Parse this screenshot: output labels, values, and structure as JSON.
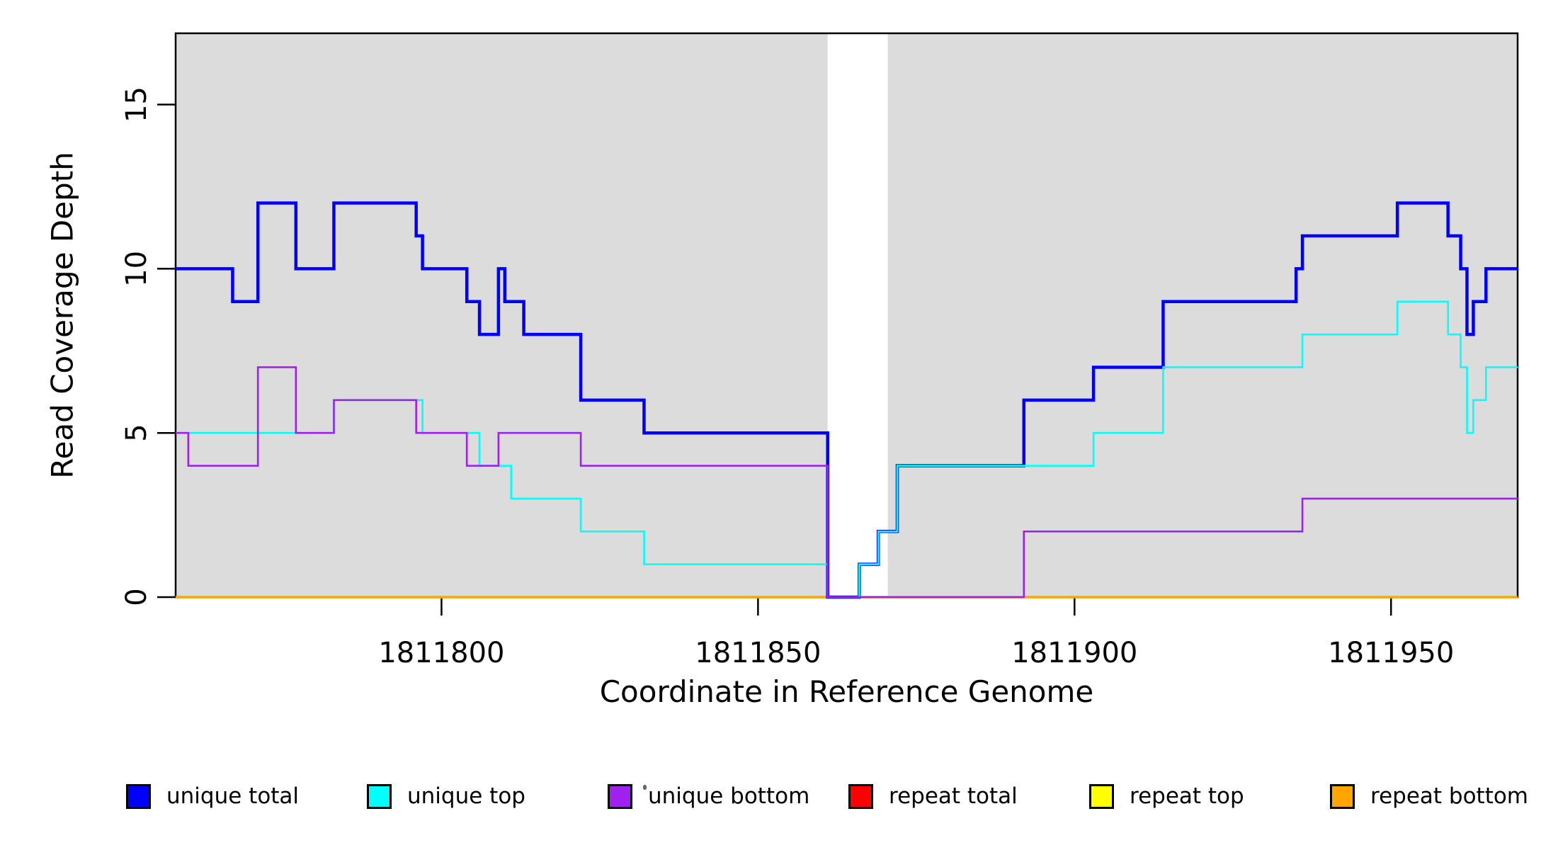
{
  "figure": {
    "background": "#FFFFFF"
  },
  "chart_data": {
    "type": "line",
    "subtype": "step",
    "title": "",
    "xlabel": "Coordinate in Reference Genome",
    "ylabel": "Read Coverage Depth",
    "xlim": [
      1811758,
      1811970
    ],
    "ylim": [
      0,
      17.17
    ],
    "xticks": [
      1811800,
      1811850,
      1811900,
      1811950
    ],
    "yticks": [
      0,
      5,
      10,
      15
    ],
    "grid": false,
    "legend_position": "bottom",
    "plot_background": "#FFFFFF",
    "shaded_regions": [
      {
        "x0": 1811758,
        "x1": 1811861,
        "color": "#DCDCDC"
      },
      {
        "x0": 1811870.5,
        "x1": 1811970,
        "color": "#DCDCDC"
      }
    ],
    "axis_color": "#000000",
    "series": [
      {
        "name": "unique total",
        "color": "#0000FF",
        "line_width": 4.5,
        "breakpoints": [
          [
            1811758,
            10
          ],
          [
            1811767,
            9
          ],
          [
            1811771,
            12
          ],
          [
            1811777,
            10
          ],
          [
            1811783,
            12
          ],
          [
            1811796,
            11
          ],
          [
            1811797,
            10
          ],
          [
            1811804,
            9
          ],
          [
            1811806,
            8
          ],
          [
            1811809,
            10
          ],
          [
            1811810,
            9
          ],
          [
            1811813,
            8
          ],
          [
            1811822,
            6
          ],
          [
            1811832,
            5
          ],
          [
            1811861,
            0
          ],
          [
            1811866,
            1
          ],
          [
            1811869,
            2
          ],
          [
            1811872,
            4
          ],
          [
            1811892,
            6
          ],
          [
            1811903,
            7
          ],
          [
            1811914,
            9
          ],
          [
            1811935,
            10
          ],
          [
            1811936,
            11
          ],
          [
            1811951,
            12
          ],
          [
            1811959,
            11
          ],
          [
            1811961,
            10
          ],
          [
            1811962,
            8
          ],
          [
            1811963,
            9
          ],
          [
            1811965,
            10
          ]
        ]
      },
      {
        "name": "unique top",
        "color": "#00FFFF",
        "line_width": 2.6,
        "breakpoints": [
          [
            1811758,
            5
          ],
          [
            1811783,
            6
          ],
          [
            1811797,
            5
          ],
          [
            1811806,
            4
          ],
          [
            1811811,
            3
          ],
          [
            1811822,
            2
          ],
          [
            1811832,
            1
          ],
          [
            1811861,
            0
          ],
          [
            1811866,
            1
          ],
          [
            1811869,
            2
          ],
          [
            1811872,
            4
          ],
          [
            1811903,
            5
          ],
          [
            1811914,
            7
          ],
          [
            1811936,
            8
          ],
          [
            1811951,
            9
          ],
          [
            1811959,
            8
          ],
          [
            1811961,
            7
          ],
          [
            1811962,
            5
          ],
          [
            1811963,
            6
          ],
          [
            1811965,
            7
          ]
        ]
      },
      {
        "name": "unique bottom",
        "color": "#A020F0",
        "line_width": 2.6,
        "breakpoints": [
          [
            1811758,
            5
          ],
          [
            1811760,
            4
          ],
          [
            1811771,
            7
          ],
          [
            1811777,
            5
          ],
          [
            1811783,
            6
          ],
          [
            1811796,
            5
          ],
          [
            1811804,
            4
          ],
          [
            1811809,
            5
          ],
          [
            1811822,
            4
          ],
          [
            1811861,
            0
          ],
          [
            1811892,
            2
          ],
          [
            1811936,
            3
          ]
        ]
      },
      {
        "name": "repeat total",
        "color": "#FF0000",
        "line_width": 3.2,
        "breakpoints": [
          [
            1811758,
            0
          ]
        ]
      },
      {
        "name": "repeat top",
        "color": "#FFFF00",
        "line_width": 3.2,
        "breakpoints": [
          [
            1811758,
            0
          ]
        ]
      },
      {
        "name": "repeat bottom",
        "color": "#FFA500",
        "line_width": 3.2,
        "breakpoints": [
          [
            1811758,
            0
          ]
        ]
      }
    ],
    "draw_order": [
      "repeat total",
      "repeat top",
      "repeat bottom",
      "unique total",
      "unique top",
      "unique bottom"
    ]
  },
  "legend": {
    "items": [
      {
        "label": "unique total",
        "color": "#0000FF"
      },
      {
        "label": "unique top",
        "color": "#00FFFF"
      },
      {
        "label": "unique bottom",
        "color": "#A020F0"
      },
      {
        "label": "repeat total",
        "color": "#FF0000"
      },
      {
        "label": "repeat top",
        "color": "#FFFF00"
      },
      {
        "label": "repeat bottom",
        "color": "#FFA500"
      }
    ]
  }
}
